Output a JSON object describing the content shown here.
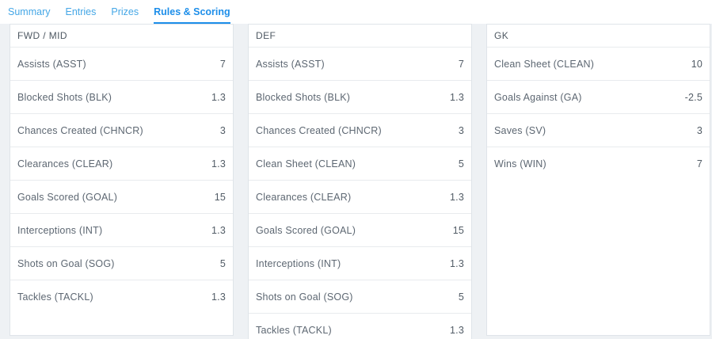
{
  "tabs": [
    {
      "id": "summary",
      "label": "Summary",
      "active": false
    },
    {
      "id": "entries",
      "label": "Entries",
      "active": false
    },
    {
      "id": "prizes",
      "label": "Prizes",
      "active": false
    },
    {
      "id": "rules-scoring",
      "label": "Rules & Scoring",
      "active": true
    }
  ],
  "scoring": {
    "columns": [
      {
        "id": "fwd-mid",
        "title": "FWD / MID",
        "rows": [
          {
            "label": "Assists (ASST)",
            "value": "7"
          },
          {
            "label": "Blocked Shots (BLK)",
            "value": "1.3"
          },
          {
            "label": "Chances Created (CHNCR)",
            "value": "3"
          },
          {
            "label": "Clearances (CLEAR)",
            "value": "1.3"
          },
          {
            "label": "Goals Scored (GOAL)",
            "value": "15"
          },
          {
            "label": "Interceptions (INT)",
            "value": "1.3"
          },
          {
            "label": "Shots on Goal (SOG)",
            "value": "5"
          },
          {
            "label": "Tackles (TACKL)",
            "value": "1.3"
          }
        ]
      },
      {
        "id": "def",
        "title": "DEF",
        "rows": [
          {
            "label": "Assists (ASST)",
            "value": "7"
          },
          {
            "label": "Blocked Shots (BLK)",
            "value": "1.3"
          },
          {
            "label": "Chances Created (CHNCR)",
            "value": "3"
          },
          {
            "label": "Clean Sheet (CLEAN)",
            "value": "5"
          },
          {
            "label": "Clearances (CLEAR)",
            "value": "1.3"
          },
          {
            "label": "Goals Scored (GOAL)",
            "value": "15"
          },
          {
            "label": "Interceptions (INT)",
            "value": "1.3"
          },
          {
            "label": "Shots on Goal (SOG)",
            "value": "5"
          },
          {
            "label": "Tackles (TACKL)",
            "value": "1.3"
          }
        ]
      },
      {
        "id": "gk",
        "title": "GK",
        "rows": [
          {
            "label": "Clean Sheet (CLEAN)",
            "value": "10"
          },
          {
            "label": "Goals Against (GA)",
            "value": "-2.5"
          },
          {
            "label": "Saves (SV)",
            "value": "3"
          },
          {
            "label": "Wins (WIN)",
            "value": "7"
          }
        ]
      }
    ]
  },
  "colors": {
    "page_background": "#eef1f4",
    "panel_background": "#ffffff",
    "panel_border": "#dfe4e9",
    "row_border": "#e8ebee",
    "tab_inactive": "#45a7e6",
    "tab_active": "#1d8ee9",
    "tab_underline": "#1d8ee9",
    "label_text": "#5d6772",
    "header_text": "#4f5963"
  }
}
